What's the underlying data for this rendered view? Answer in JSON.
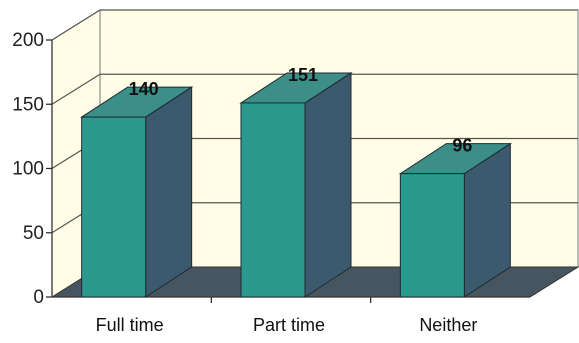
{
  "chart_data": {
    "type": "bar",
    "style": "3d",
    "categories": [
      "Full time",
      "Part time",
      "Neither"
    ],
    "values": [
      140,
      151,
      96
    ],
    "data_labels": [
      "140",
      "151",
      "96"
    ],
    "ylim": [
      0,
      200
    ],
    "yticks": [
      0,
      50,
      100,
      150,
      200
    ],
    "ytick_labels": [
      "0",
      "50",
      "100",
      "150",
      "200"
    ],
    "title": "",
    "xlabel": "",
    "ylabel": "",
    "grid": true,
    "legend": "none",
    "colors": {
      "bar_front": "#2a9a8e",
      "bar_top": "#3b8f86",
      "bar_side": "#3c5a6e",
      "floor": "#465560",
      "wall": "#fffde6",
      "gridline": "#555555"
    }
  }
}
